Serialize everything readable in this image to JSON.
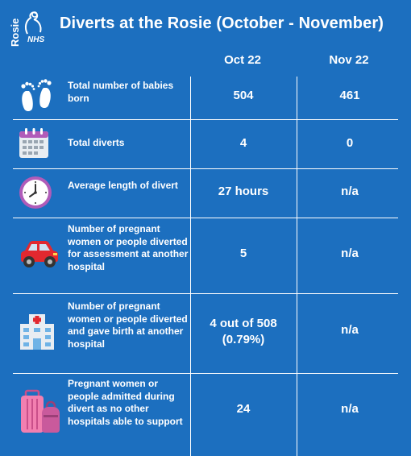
{
  "logo": {
    "word": "Rosie",
    "nhs": "NHS"
  },
  "title": "Diverts at the Rosie (October - November)",
  "columns": [
    "Oct 22",
    "Nov 22"
  ],
  "rows": [
    {
      "icon": "baby-feet-icon",
      "label": "Total number of babies born",
      "oct": "504",
      "nov": "461"
    },
    {
      "icon": "calendar-icon",
      "label": "Total diverts",
      "oct": "4",
      "nov": "0"
    },
    {
      "icon": "clock-icon",
      "label": "Average length of divert",
      "oct": "27 hours",
      "nov": "n/a"
    },
    {
      "icon": "car-icon",
      "label": "Number of pregnant women or people diverted for assessment at another hospital",
      "oct": "5",
      "nov": "n/a"
    },
    {
      "icon": "hospital-icon",
      "label": "Number of pregnant women or people diverted and gave birth at another hospital",
      "oct": "4 out of 508 (0.79%)",
      "nov": "n/a"
    },
    {
      "icon": "luggage-icon",
      "label": "Pregnant women or people admitted during divert as no other hospitals able to support",
      "oct": "24",
      "nov": "n/a"
    }
  ]
}
